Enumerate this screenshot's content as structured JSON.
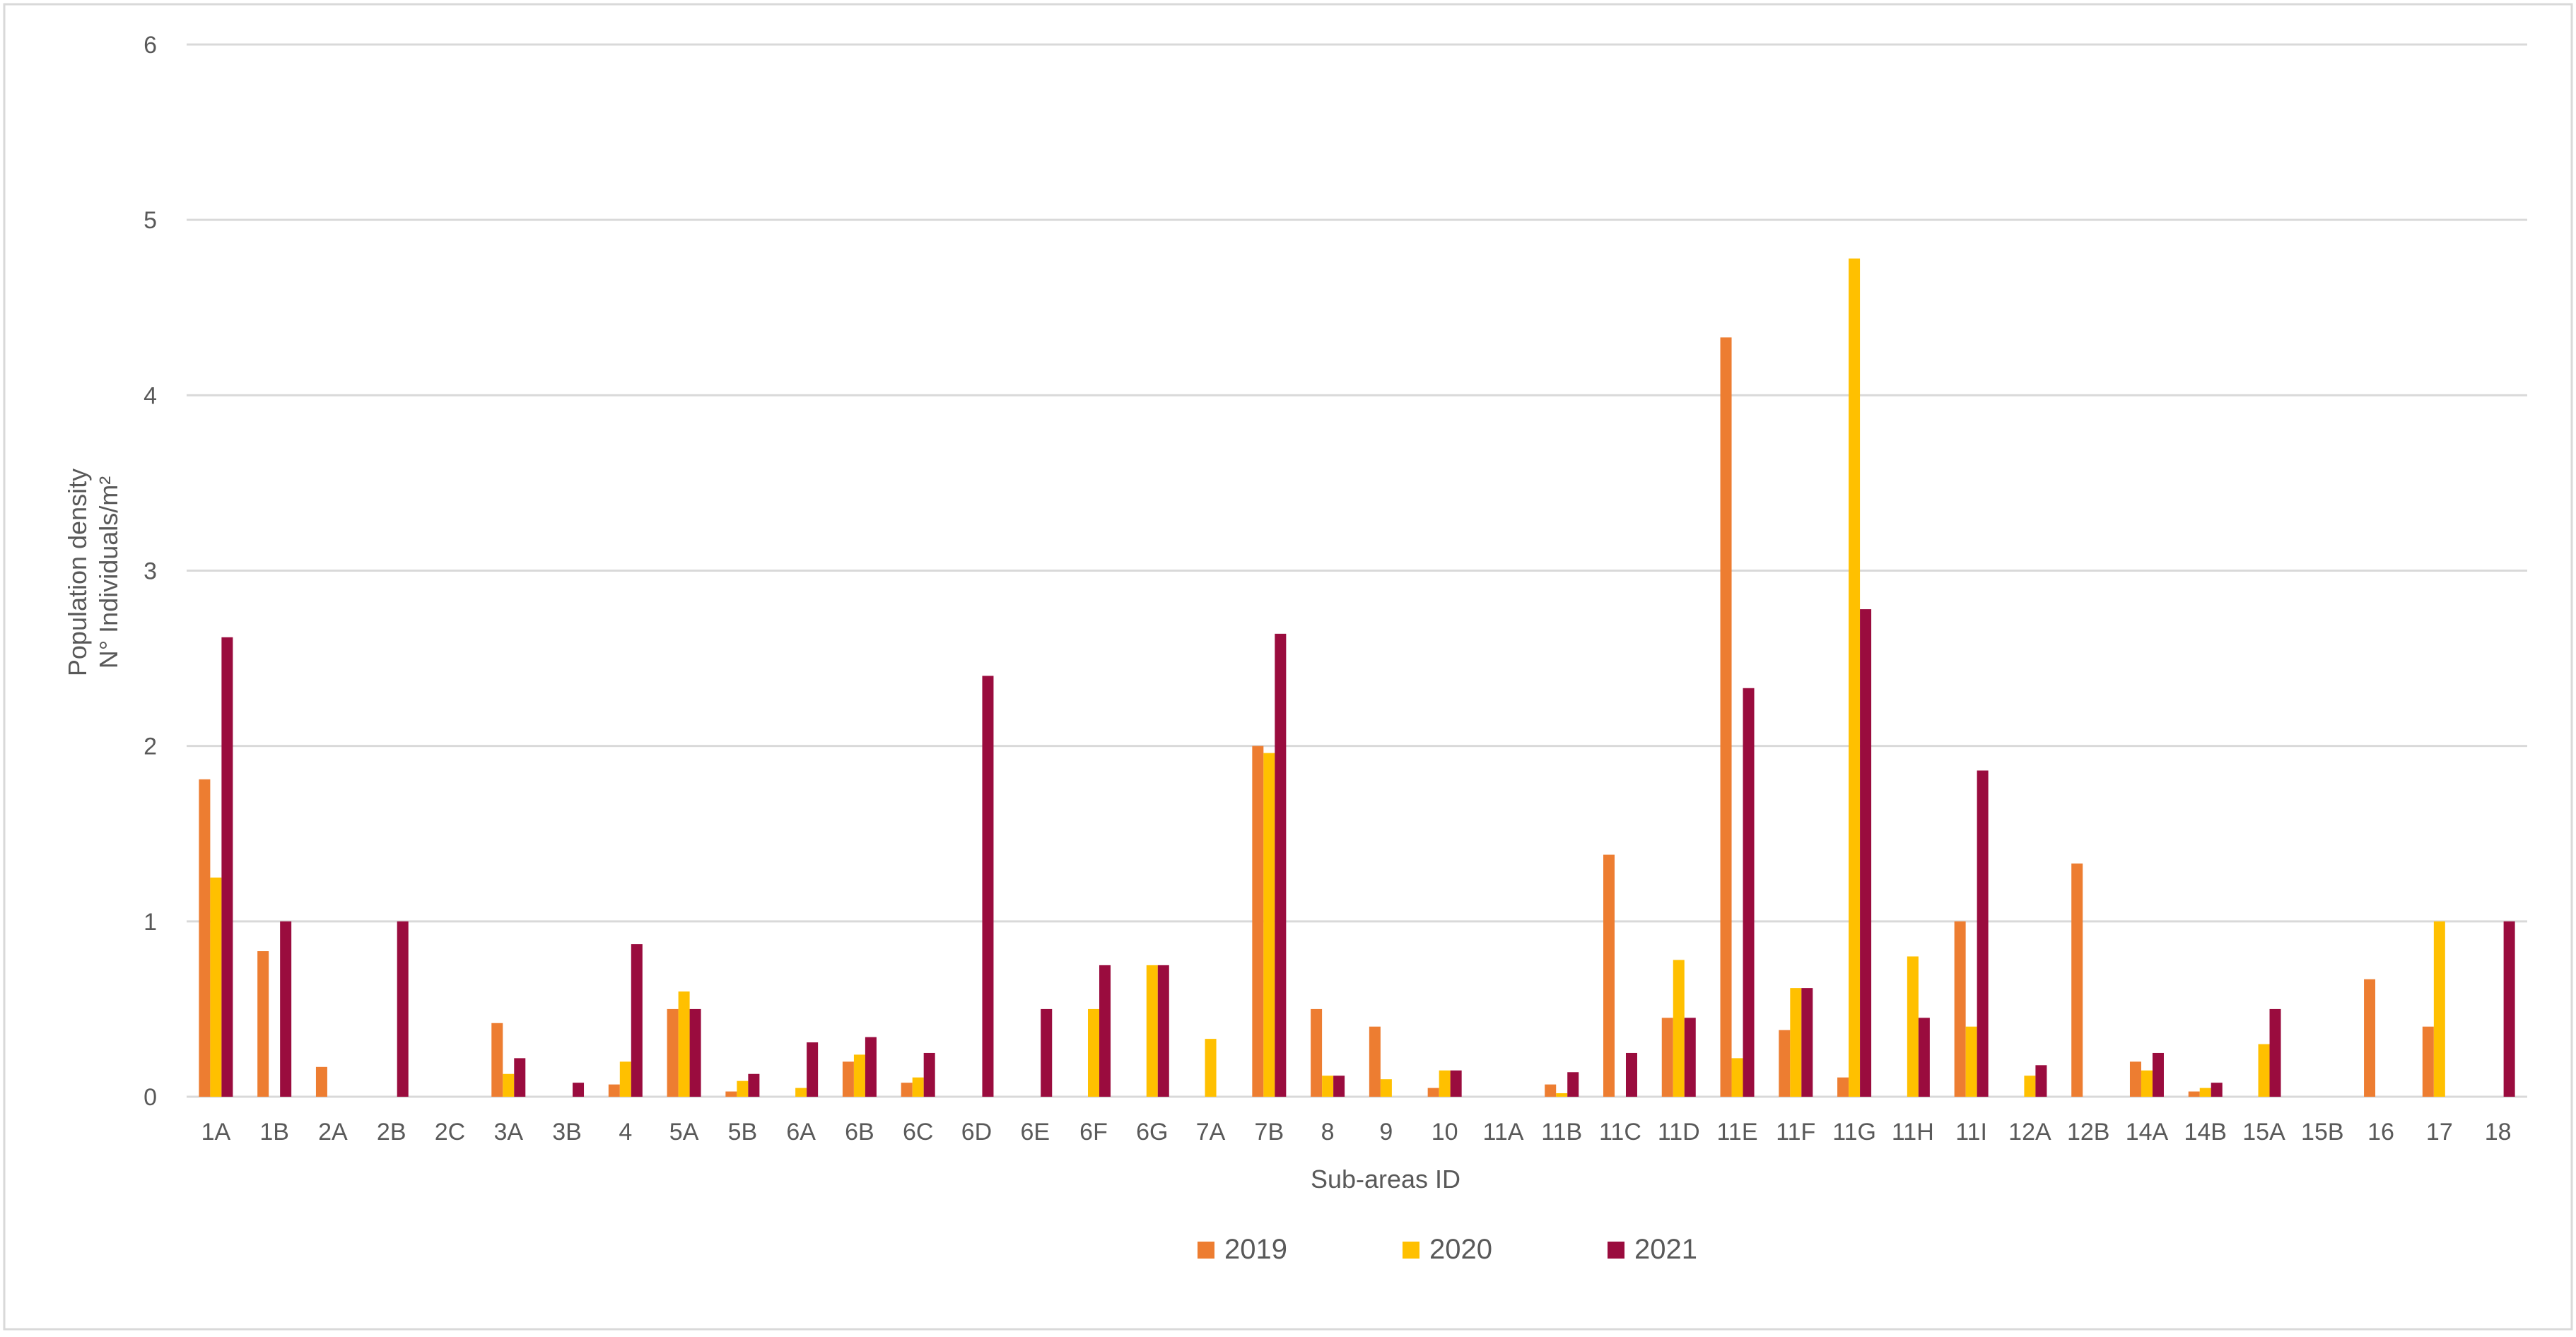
{
  "chart_data": {
    "type": "bar",
    "title": "",
    "xlabel": "Sub-areas ID",
    "ylabel_lines": [
      "Population density",
      "N° Individuals/m²"
    ],
    "ylim": [
      0,
      6
    ],
    "yticks": [
      "0",
      "1",
      "2",
      "3",
      "4",
      "5",
      "6"
    ],
    "grid": true,
    "legend_position": "bottom",
    "categories": [
      "1A",
      "1B",
      "2A",
      "2B",
      "2C",
      "3A",
      "3B",
      "4",
      "5A",
      "5B",
      "6A",
      "6B",
      "6C",
      "6D",
      "6E",
      "6F",
      "6G",
      "7A",
      "7B",
      "8",
      "9",
      "10",
      "11A",
      "11B",
      "11C",
      "11D",
      "11E",
      "11F",
      "11G",
      "11H",
      "11I",
      "12A",
      "12B",
      "14A",
      "14B",
      "15A",
      "15B",
      "16",
      "17",
      "18"
    ],
    "series": [
      {
        "name": "2019",
        "color": "#ED7D31",
        "values": [
          1.81,
          0.83,
          0.17,
          0,
          0,
          0.42,
          0,
          0.07,
          0.5,
          0.03,
          0,
          0.2,
          0.08,
          0,
          0,
          0,
          0,
          0,
          2.0,
          0.5,
          0.4,
          0.05,
          0,
          0.07,
          1.38,
          0.45,
          4.33,
          0.38,
          0.11,
          0,
          1.0,
          0,
          1.33,
          0.2,
          0.03,
          0,
          0,
          0.67,
          0.4,
          0
        ]
      },
      {
        "name": "2020",
        "color": "#FFC000",
        "values": [
          1.25,
          0,
          0,
          0,
          0,
          0.13,
          0,
          0.2,
          0.6,
          0.09,
          0.05,
          0.24,
          0.11,
          0,
          0,
          0.5,
          0.75,
          0.33,
          1.96,
          0.12,
          0.1,
          0.15,
          0,
          0.02,
          0,
          0.78,
          0.22,
          0.62,
          4.78,
          0.8,
          0.4,
          0.12,
          0,
          0.15,
          0.05,
          0.3,
          0,
          0,
          1.0,
          0
        ]
      },
      {
        "name": "2021",
        "color": "#9A0C3E",
        "values": [
          2.62,
          1.0,
          0,
          1.0,
          0,
          0.22,
          0.08,
          0.87,
          0.5,
          0.13,
          0.31,
          0.34,
          0.25,
          2.4,
          0.5,
          0.75,
          0.75,
          0,
          2.64,
          0.12,
          0,
          0.15,
          0,
          0.14,
          0.25,
          0.45,
          2.33,
          0.62,
          2.78,
          0.45,
          1.86,
          0.18,
          0,
          0.25,
          0.08,
          0.5,
          0,
          0,
          0,
          1.0
        ]
      }
    ]
  }
}
